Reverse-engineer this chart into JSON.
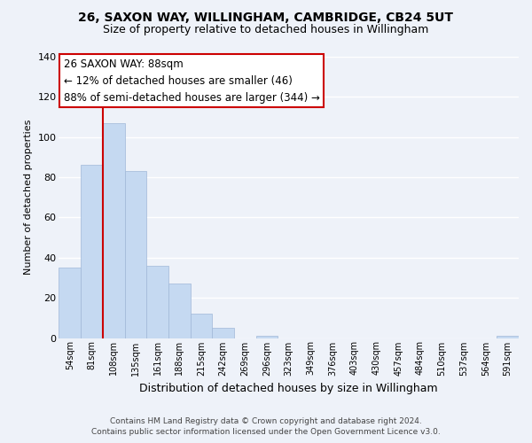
{
  "title": "26, SAXON WAY, WILLINGHAM, CAMBRIDGE, CB24 5UT",
  "subtitle": "Size of property relative to detached houses in Willingham",
  "xlabel": "Distribution of detached houses by size in Willingham",
  "ylabel": "Number of detached properties",
  "bin_labels": [
    "54sqm",
    "81sqm",
    "108sqm",
    "135sqm",
    "161sqm",
    "188sqm",
    "215sqm",
    "242sqm",
    "269sqm",
    "296sqm",
    "323sqm",
    "349sqm",
    "376sqm",
    "403sqm",
    "430sqm",
    "457sqm",
    "484sqm",
    "510sqm",
    "537sqm",
    "564sqm",
    "591sqm"
  ],
  "bar_values": [
    35,
    86,
    107,
    83,
    36,
    27,
    12,
    5,
    0,
    1,
    0,
    0,
    0,
    0,
    0,
    0,
    0,
    0,
    0,
    0,
    1
  ],
  "bar_color": "#c5d9f1",
  "bar_edge_color": "#a0b8d8",
  "vline_color": "#cc0000",
  "ylim": [
    0,
    140
  ],
  "yticks": [
    0,
    20,
    40,
    60,
    80,
    100,
    120,
    140
  ],
  "annotation_title": "26 SAXON WAY: 88sqm",
  "annotation_line1": "← 12% of detached houses are smaller (46)",
  "annotation_line2": "88% of semi-detached houses are larger (344) →",
  "annotation_box_color": "#ffffff",
  "annotation_box_edge": "#cc0000",
  "footer1": "Contains HM Land Registry data © Crown copyright and database right 2024.",
  "footer2": "Contains public sector information licensed under the Open Government Licence v3.0.",
  "background_color": "#eef2f9",
  "plot_background": "#eef2f9",
  "grid_color": "#ffffff"
}
